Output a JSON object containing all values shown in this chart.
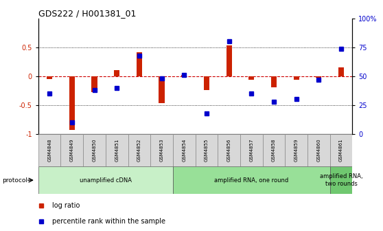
{
  "title": "GDS222 / H001381_01",
  "samples": [
    "GSM4848",
    "GSM4849",
    "GSM4850",
    "GSM4851",
    "GSM4852",
    "GSM4853",
    "GSM4854",
    "GSM4855",
    "GSM4856",
    "GSM4857",
    "GSM4858",
    "GSM4859",
    "GSM4860",
    "GSM4861"
  ],
  "log_ratio": [
    -0.05,
    -0.93,
    -0.28,
    0.1,
    0.41,
    -0.46,
    0.02,
    -0.24,
    0.54,
    -0.06,
    -0.19,
    -0.06,
    -0.03,
    0.15
  ],
  "percentile": [
    35,
    10,
    38,
    40,
    68,
    48,
    51,
    18,
    80,
    35,
    28,
    30,
    47,
    74
  ],
  "protocol_groups": [
    {
      "label": "unamplified cDNA",
      "start": 0,
      "end": 5,
      "color": "#c8f0c8"
    },
    {
      "label": "amplified RNA, one round",
      "start": 6,
      "end": 12,
      "color": "#98e098"
    },
    {
      "label": "amplified RNA,\ntwo rounds",
      "start": 13,
      "end": 13,
      "color": "#70c870"
    }
  ],
  "bar_color": "#cc2200",
  "dot_color": "#0000cc",
  "zero_line_color": "#cc0000",
  "ylim": [
    -1,
    1
  ],
  "y2lim": [
    0,
    100
  ],
  "yticks": [
    -1,
    -0.5,
    0,
    0.5
  ],
  "ytick_labels": [
    "-1",
    "-0.5",
    "0",
    "0.5"
  ],
  "y2ticks": [
    0,
    25,
    50,
    75,
    100
  ],
  "y2tick_labels": [
    "0",
    "25",
    "50",
    "75",
    "100%"
  ],
  "dotted_lines": [
    -0.5,
    0.5
  ],
  "background_color": "#ffffff",
  "legend_items": [
    {
      "label": "log ratio",
      "color": "#cc2200"
    },
    {
      "label": "percentile rank within the sample",
      "color": "#0000cc"
    }
  ],
  "bar_width": 0.25
}
